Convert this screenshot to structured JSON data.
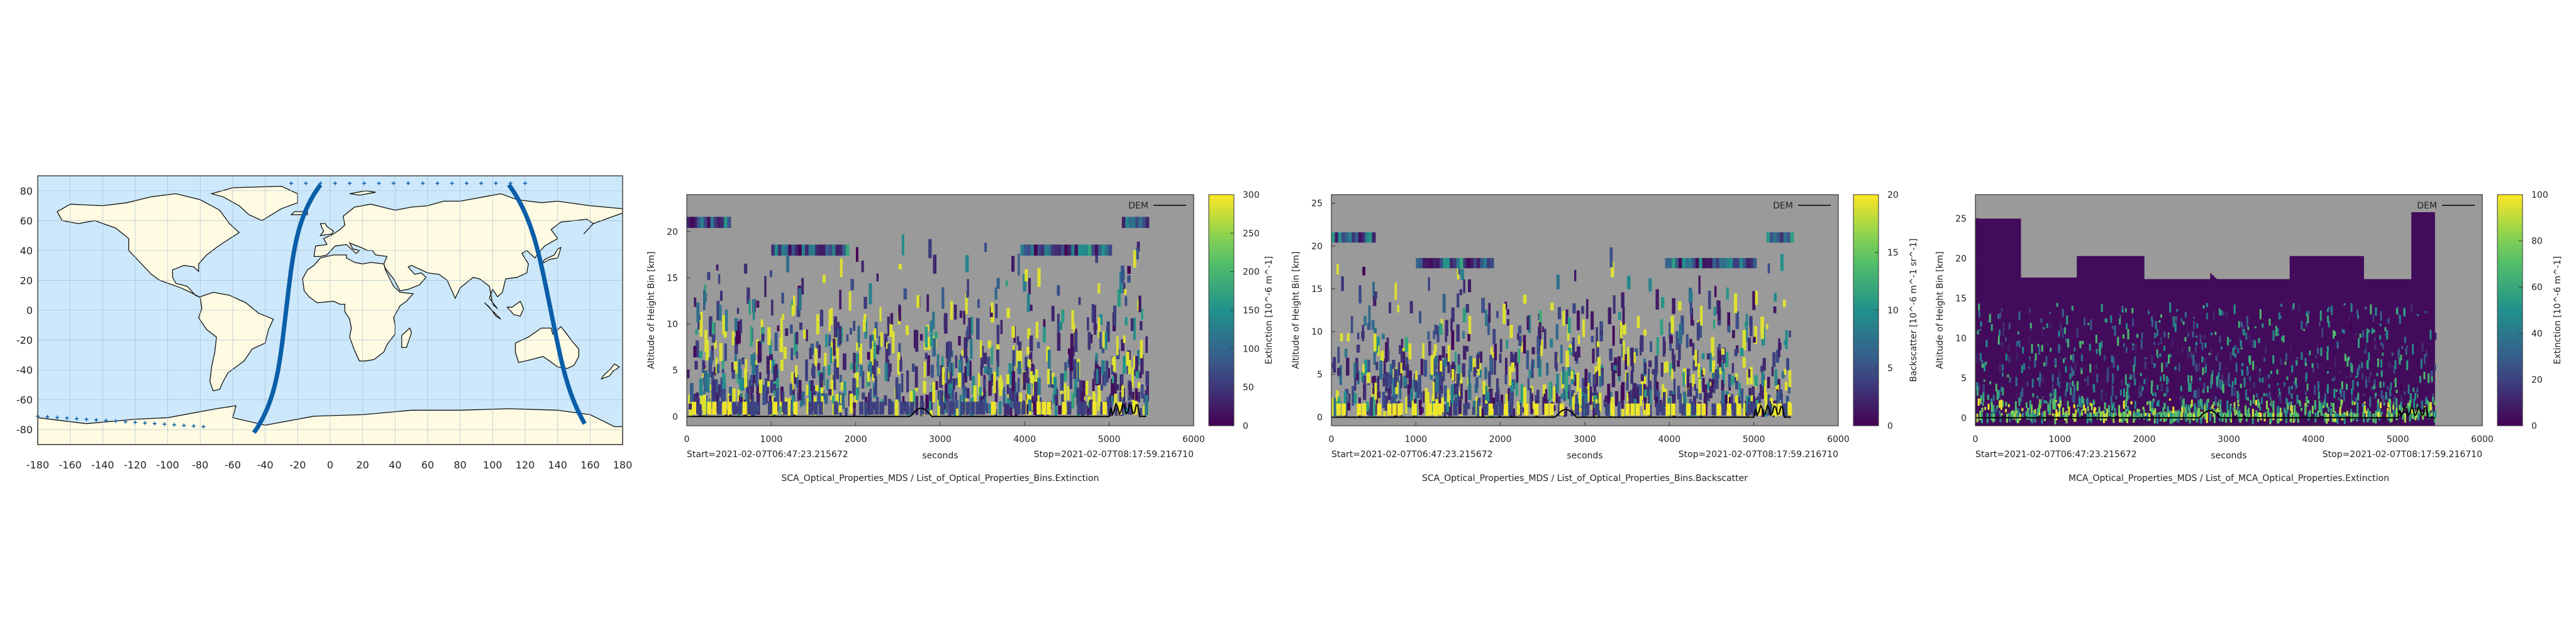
{
  "panels": {
    "map": {
      "x_ticks": [
        "-180",
        "-160",
        "-140",
        "-120",
        "-100",
        "-80",
        "-60",
        "-40",
        "-20",
        "0",
        "20",
        "40",
        "60",
        "80",
        "100",
        "120",
        "140",
        "160",
        "180"
      ],
      "y_ticks": [
        "80",
        "60",
        "40",
        "20",
        "0",
        "-20",
        "-40",
        "-60",
        "-80"
      ],
      "colors": {
        "ocean": "#cce8fa",
        "land": "#fffbe3",
        "track": "#0b5ea8"
      }
    }
  },
  "chart_data": [
    {
      "type": "heatmap",
      "title": "",
      "xlabel": "seconds",
      "ylabel": "Altitude of Height Bin [km]",
      "footer": "SCA_Optical_Properties_MDS / List_of_Optical_Properties_Bins.Extinction",
      "start_label": "Start=2021-02-07T06:47:23.215672",
      "stop_label": "Stop=2021-02-07T08:17:59.216710",
      "legend_entry": "DEM",
      "xlim": [
        0,
        6000
      ],
      "ylim": [
        -1,
        24
      ],
      "x_ticks": [
        "0",
        "1000",
        "2000",
        "3000",
        "4000",
        "5000",
        "6000"
      ],
      "y_ticks": [
        "0",
        "5",
        "10",
        "15",
        "20"
      ],
      "colorbar": {
        "label": "Extinction [10^-6 m^-1]",
        "range": [
          0,
          300
        ],
        "ticks": [
          "0",
          "50",
          "100",
          "150",
          "200",
          "250",
          "300"
        ]
      },
      "data_extent_seconds": [
        0,
        5440
      ]
    },
    {
      "type": "heatmap",
      "title": "",
      "xlabel": "seconds",
      "ylabel": "Altitude of Height Bin [km]",
      "footer": "SCA_Optical_Properties_MDS / List_of_Optical_Properties_Bins.Backscatter",
      "start_label": "Start=2021-02-07T06:47:23.215672",
      "stop_label": "Stop=2021-02-07T08:17:59.216710",
      "legend_entry": "DEM",
      "xlim": [
        0,
        6000
      ],
      "ylim": [
        -1,
        26
      ],
      "x_ticks": [
        "0",
        "1000",
        "2000",
        "3000",
        "4000",
        "5000",
        "6000"
      ],
      "y_ticks": [
        "0",
        "5",
        "10",
        "15",
        "20",
        "25"
      ],
      "colorbar": {
        "label": "Backscatter [10^-6 m^-1 sr^-1]",
        "range": [
          0,
          20
        ],
        "ticks": [
          "0",
          "5",
          "10",
          "15",
          "20"
        ]
      },
      "data_extent_seconds": [
        0,
        5440
      ]
    },
    {
      "type": "heatmap",
      "title": "",
      "xlabel": "seconds",
      "ylabel": "Altitude of Height Bin [km]",
      "footer": "MCA_Optical_Properties_MDS / List_of_MCA_Optical_Properties.Extinction",
      "start_label": "Start=2021-02-07T06:47:23.215672",
      "stop_label": "Stop=2021-02-07T08:17:59.216710",
      "legend_entry": "DEM",
      "xlim": [
        0,
        6000
      ],
      "ylim": [
        -1,
        28
      ],
      "x_ticks": [
        "0",
        "1000",
        "2000",
        "3000",
        "4000",
        "5000",
        "6000"
      ],
      "y_ticks": [
        "0",
        "5",
        "10",
        "15",
        "20",
        "25"
      ],
      "colorbar": {
        "label": "Extinction [10^-6 m^-1]",
        "range": [
          0,
          100
        ],
        "ticks": [
          "0",
          "20",
          "40",
          "60",
          "80",
          "100"
        ]
      },
      "data_extent_seconds": [
        0,
        5440
      ]
    }
  ]
}
